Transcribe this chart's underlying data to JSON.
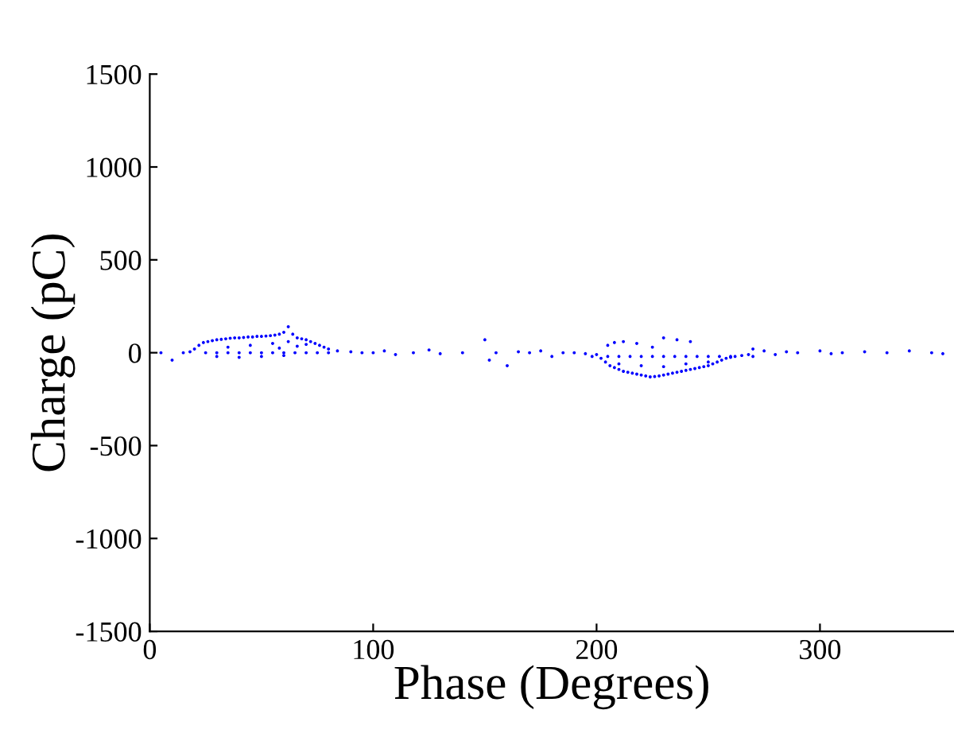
{
  "chart_data": {
    "type": "scatter",
    "xlabel": "Phase (Degrees)",
    "ylabel": "Charge (pC)",
    "xlim": [
      0,
      360
    ],
    "ylim": [
      -1500,
      1500
    ],
    "xticks": [
      0,
      100,
      200,
      300
    ],
    "yticks": [
      -1500,
      -1000,
      -500,
      0,
      500,
      1000,
      1500
    ],
    "grid": false,
    "marker": "circle",
    "series": [
      {
        "color": "#0000ff",
        "x": [
          5,
          10,
          15,
          18,
          20,
          22,
          24,
          26,
          28,
          30,
          32,
          34,
          36,
          38,
          40,
          42,
          44,
          46,
          48,
          50,
          52,
          54,
          56,
          58,
          60,
          62,
          64,
          66,
          68,
          70,
          72,
          74,
          76,
          78,
          80,
          25,
          30,
          35,
          40,
          45,
          50,
          55,
          60,
          65,
          70,
          75,
          80,
          30,
          40,
          50,
          60,
          35,
          45,
          55,
          62,
          58,
          66,
          70,
          84,
          90,
          95,
          100,
          105,
          110,
          118,
          125,
          130,
          140,
          150,
          152,
          155,
          160,
          165,
          170,
          175,
          180,
          185,
          190,
          195,
          198,
          200,
          202,
          204,
          206,
          208,
          210,
          212,
          214,
          216,
          218,
          220,
          222,
          224,
          226,
          228,
          230,
          232,
          234,
          236,
          238,
          240,
          242,
          244,
          246,
          248,
          250,
          252,
          254,
          256,
          258,
          260,
          262,
          265,
          268,
          205,
          210,
          215,
          220,
          225,
          230,
          235,
          240,
          245,
          250,
          255,
          260,
          270,
          210,
          220,
          230,
          240,
          250,
          205,
          208,
          212,
          218,
          225,
          230,
          236,
          242,
          270,
          275,
          280,
          285,
          290,
          300,
          305,
          310,
          320,
          330,
          340,
          350,
          355
        ],
        "values": [
          0,
          -40,
          0,
          5,
          20,
          40,
          55,
          60,
          65,
          70,
          72,
          75,
          78,
          80,
          80,
          82,
          85,
          85,
          88,
          88,
          90,
          92,
          95,
          100,
          110,
          140,
          100,
          80,
          75,
          70,
          60,
          50,
          40,
          30,
          20,
          0,
          0,
          0,
          0,
          0,
          0,
          0,
          0,
          0,
          0,
          0,
          0,
          -20,
          -25,
          -20,
          -15,
          30,
          40,
          50,
          60,
          25,
          35,
          45,
          10,
          5,
          0,
          0,
          10,
          -10,
          0,
          15,
          -5,
          0,
          70,
          -40,
          0,
          -70,
          5,
          0,
          10,
          -20,
          0,
          0,
          -5,
          -20,
          -10,
          -30,
          -50,
          -70,
          -80,
          -90,
          -100,
          -105,
          -110,
          -115,
          -120,
          -125,
          -130,
          -128,
          -125,
          -120,
          -115,
          -110,
          -105,
          -100,
          -95,
          -90,
          -85,
          -80,
          -75,
          -70,
          -60,
          -50,
          -40,
          -30,
          -25,
          -20,
          -15,
          -10,
          -20,
          -20,
          -20,
          -20,
          -20,
          -20,
          -20,
          -20,
          -20,
          -20,
          -20,
          -20,
          -20,
          -60,
          -70,
          -75,
          -60,
          -50,
          40,
          55,
          60,
          50,
          30,
          80,
          70,
          60,
          20,
          10,
          -10,
          5,
          0,
          10,
          -5,
          0,
          5,
          0,
          10,
          0,
          -5
        ]
      }
    ]
  }
}
